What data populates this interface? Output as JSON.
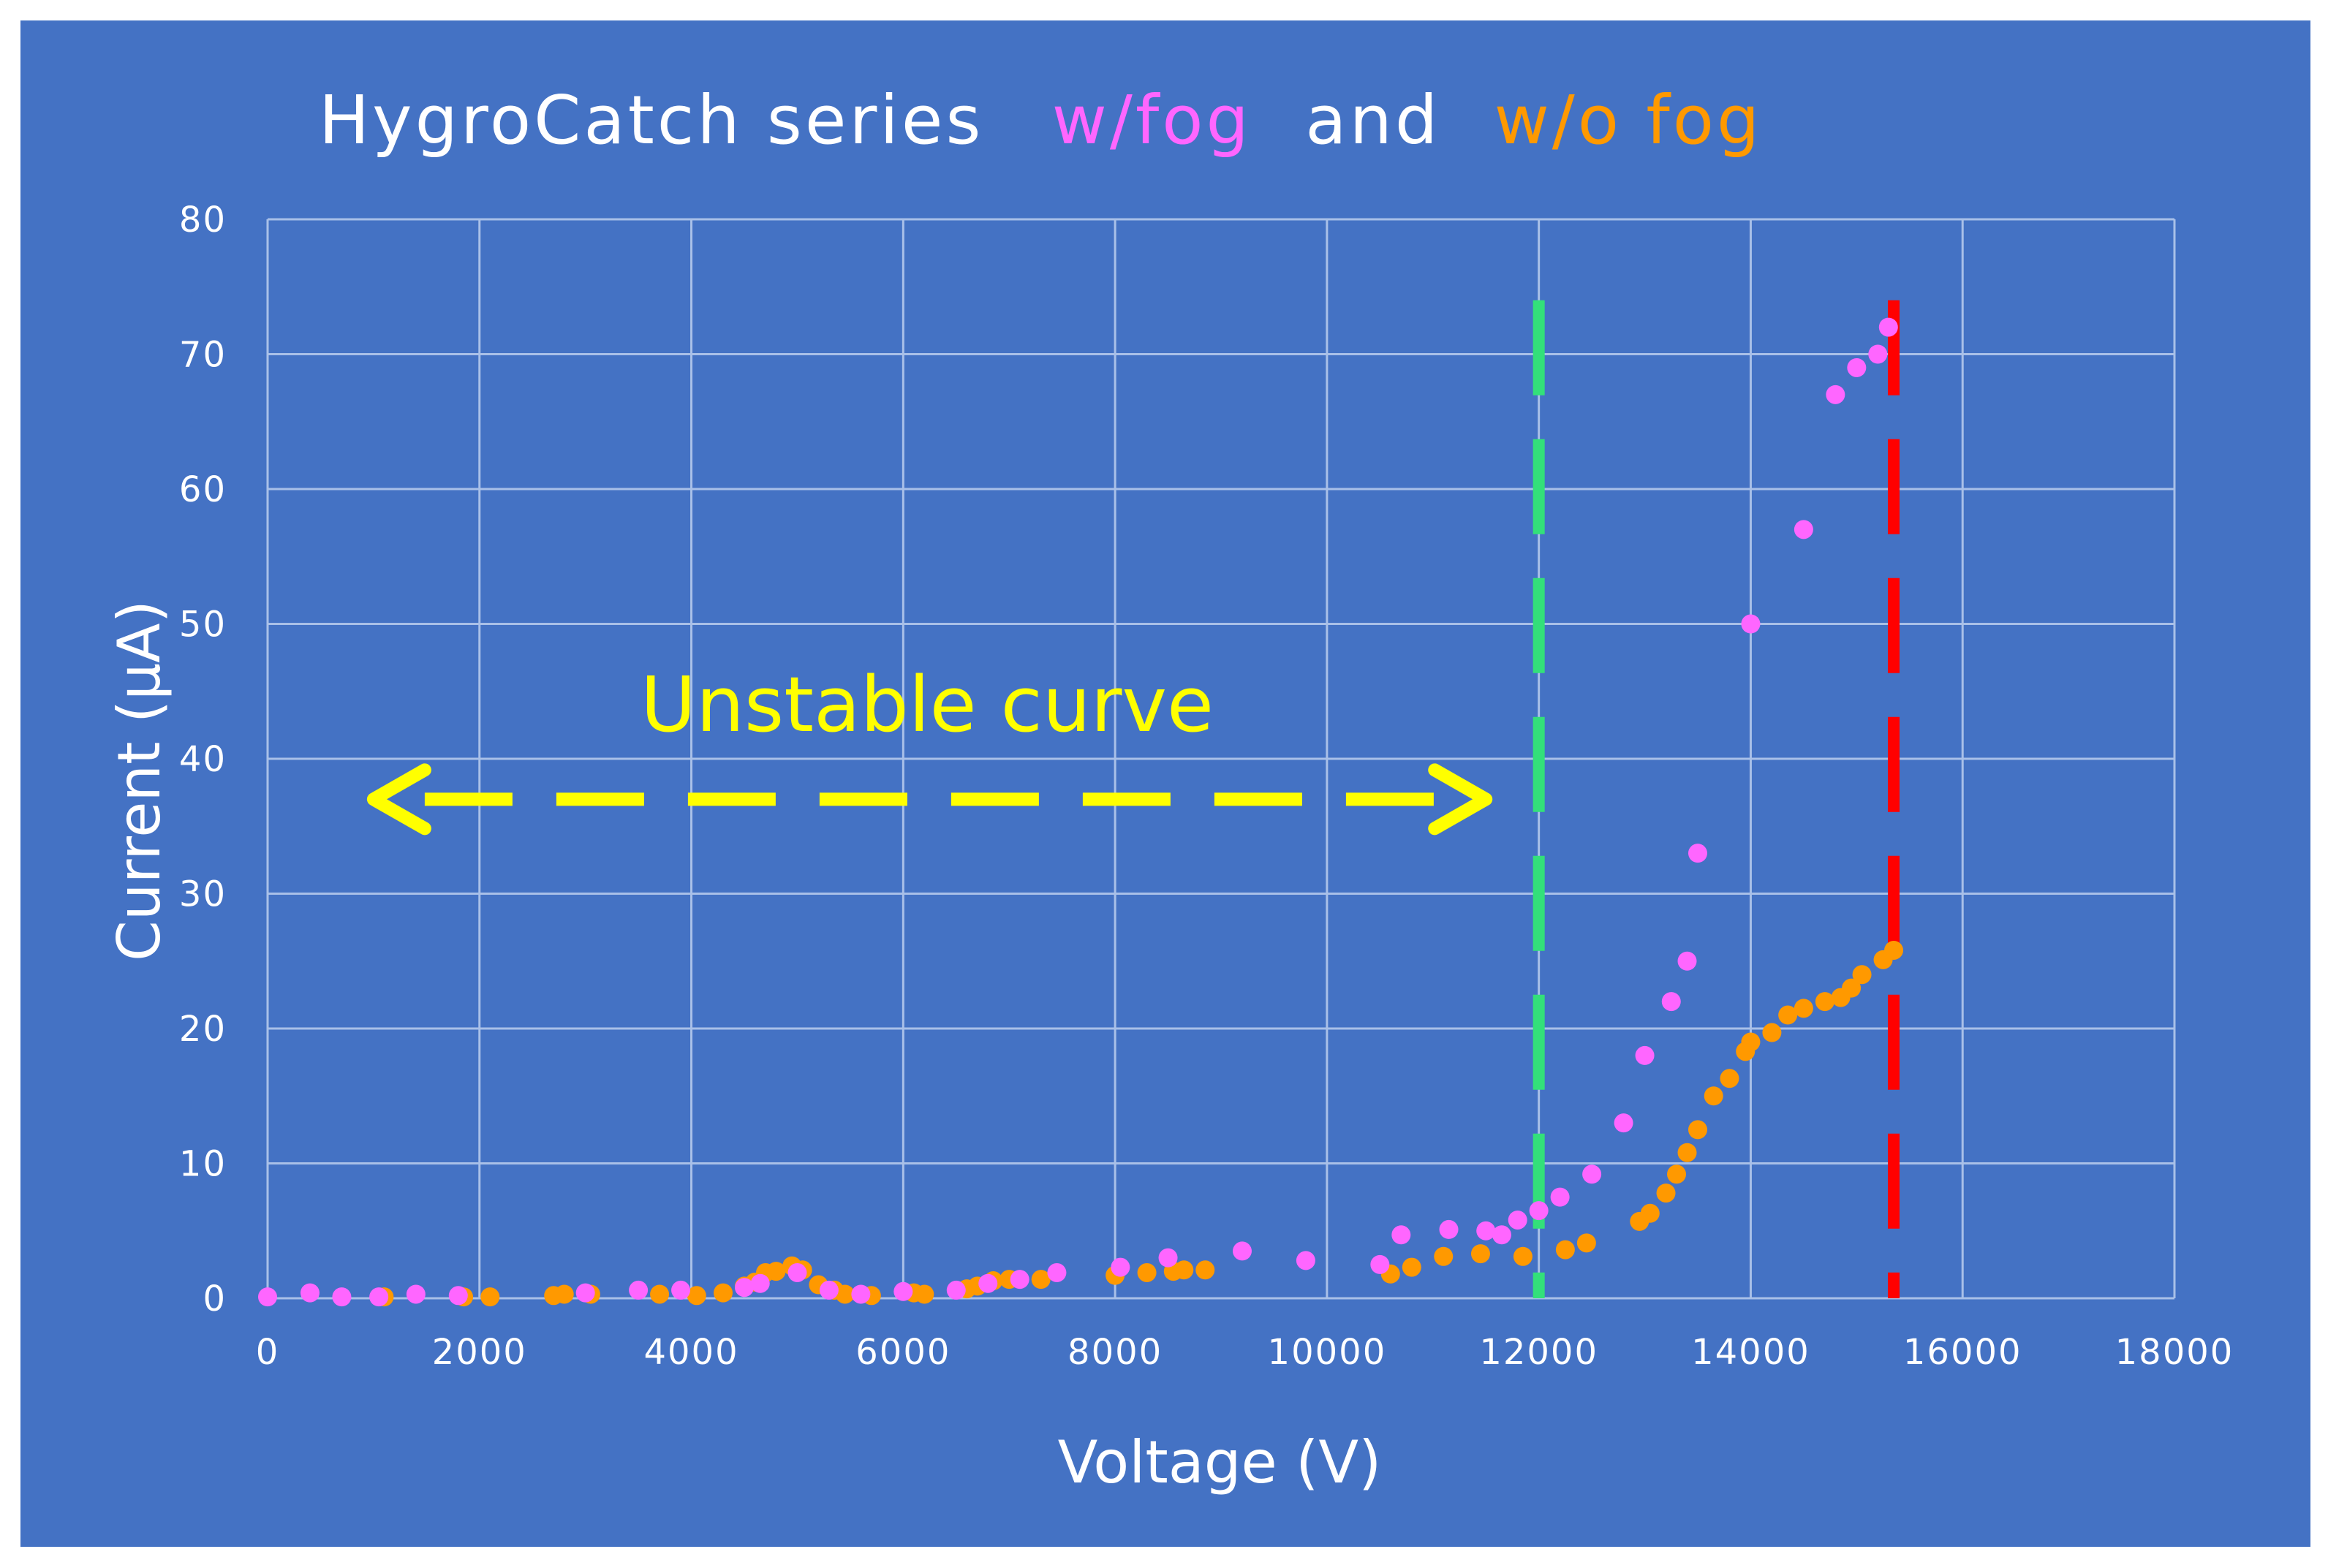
{
  "chart_data": {
    "type": "scatter",
    "title": {
      "prefix": "HygroCatch series",
      "series1_label": "w/fog",
      "joiner": "and",
      "series2_label": "w/o fog"
    },
    "xlabel": "Voltage (V)",
    "ylabel": "Current (μA)",
    "xlim": [
      0,
      18000
    ],
    "ylim": [
      0,
      80
    ],
    "x_ticks": [
      0,
      2000,
      4000,
      6000,
      8000,
      10000,
      12000,
      14000,
      16000,
      18000
    ],
    "y_ticks": [
      0,
      10,
      20,
      30,
      40,
      50,
      60,
      70,
      80
    ],
    "grid": true,
    "colors": {
      "background": "#4472C4",
      "grid": "#A9C0E8",
      "w_fog": "#FF66FF",
      "wo_fog": "#FF9900",
      "text": "#FFFFFF",
      "annotation": "#FFFF00",
      "green_line": "#33E07A",
      "red_line": "#FF0000"
    },
    "series": [
      {
        "name": "w/fog",
        "points": [
          [
            0,
            0.1
          ],
          [
            400,
            0.4
          ],
          [
            700,
            0.1
          ],
          [
            1050,
            0.1
          ],
          [
            1400,
            0.3
          ],
          [
            1800,
            0.2
          ],
          [
            3000,
            0.4
          ],
          [
            3500,
            0.6
          ],
          [
            3900,
            0.6
          ],
          [
            4500,
            0.8
          ],
          [
            4650,
            1.1
          ],
          [
            5000,
            1.9
          ],
          [
            5300,
            0.6
          ],
          [
            5600,
            0.3
          ],
          [
            6000,
            0.5
          ],
          [
            6500,
            0.6
          ],
          [
            6800,
            1.1
          ],
          [
            7100,
            1.4
          ],
          [
            7450,
            1.9
          ],
          [
            8050,
            2.3
          ],
          [
            8500,
            3.0
          ],
          [
            9200,
            3.5
          ],
          [
            9800,
            2.8
          ],
          [
            10500,
            2.5
          ],
          [
            10700,
            4.7
          ],
          [
            11150,
            5.1
          ],
          [
            11500,
            5.0
          ],
          [
            11650,
            4.7
          ],
          [
            11800,
            5.8
          ],
          [
            12000,
            6.5
          ],
          [
            12200,
            7.5
          ],
          [
            12500,
            9.2
          ],
          [
            12800,
            13.0
          ],
          [
            13000,
            18.0
          ],
          [
            13250,
            22.0
          ],
          [
            13400,
            25.0
          ],
          [
            13500,
            33.0
          ],
          [
            14000,
            50.0
          ],
          [
            14500,
            57.0
          ],
          [
            14800,
            67.0
          ],
          [
            15000,
            69.0
          ],
          [
            15200,
            70.0
          ],
          [
            15300,
            72.0
          ]
        ]
      },
      {
        "name": "w/o fog",
        "points": [
          [
            1100,
            0.1
          ],
          [
            1850,
            0.1
          ],
          [
            2100,
            0.1
          ],
          [
            2700,
            0.2
          ],
          [
            2800,
            0.3
          ],
          [
            3050,
            0.3
          ],
          [
            3700,
            0.3
          ],
          [
            4050,
            0.2
          ],
          [
            4300,
            0.4
          ],
          [
            4500,
            0.9
          ],
          [
            4600,
            1.2
          ],
          [
            4700,
            1.9
          ],
          [
            4800,
            2.0
          ],
          [
            4950,
            2.4
          ],
          [
            5050,
            2.1
          ],
          [
            5200,
            1.0
          ],
          [
            5350,
            0.6
          ],
          [
            5450,
            0.3
          ],
          [
            5700,
            0.2
          ],
          [
            6100,
            0.4
          ],
          [
            6200,
            0.3
          ],
          [
            6600,
            0.7
          ],
          [
            6700,
            0.9
          ],
          [
            6850,
            1.3
          ],
          [
            7000,
            1.4
          ],
          [
            7300,
            1.4
          ],
          [
            8000,
            1.7
          ],
          [
            8300,
            1.9
          ],
          [
            8550,
            2.0
          ],
          [
            8650,
            2.1
          ],
          [
            8850,
            2.1
          ],
          [
            10600,
            1.8
          ],
          [
            10800,
            2.3
          ],
          [
            11100,
            3.1
          ],
          [
            11450,
            3.3
          ],
          [
            11850,
            3.1
          ],
          [
            12250,
            3.6
          ],
          [
            12450,
            4.1
          ],
          [
            12950,
            5.7
          ],
          [
            13050,
            6.3
          ],
          [
            13200,
            7.8
          ],
          [
            13300,
            9.2
          ],
          [
            13400,
            10.8
          ],
          [
            13500,
            12.5
          ],
          [
            13650,
            15.0
          ],
          [
            13800,
            16.3
          ],
          [
            13950,
            18.3
          ],
          [
            14000,
            19.0
          ],
          [
            14200,
            19.7
          ],
          [
            14350,
            21.0
          ],
          [
            14500,
            21.5
          ],
          [
            14700,
            22.0
          ],
          [
            14850,
            22.3
          ],
          [
            14950,
            23.0
          ],
          [
            15050,
            24.0
          ],
          [
            15250,
            25.1
          ],
          [
            15350,
            25.8
          ]
        ]
      }
    ],
    "reference_lines": [
      {
        "name": "stability-threshold",
        "x": 12000,
        "y_from": 0,
        "y_to": 74,
        "color": "#33E07A",
        "style": "dashed"
      },
      {
        "name": "breakdown-limit",
        "x": 15350,
        "y_from": 0,
        "y_to": 74,
        "color": "#FF0000",
        "style": "dashed"
      }
    ],
    "annotation": {
      "text": "Unstable curve",
      "arrow_from_x": 1000,
      "arrow_to_x": 11500,
      "arrow_y": 37
    }
  }
}
